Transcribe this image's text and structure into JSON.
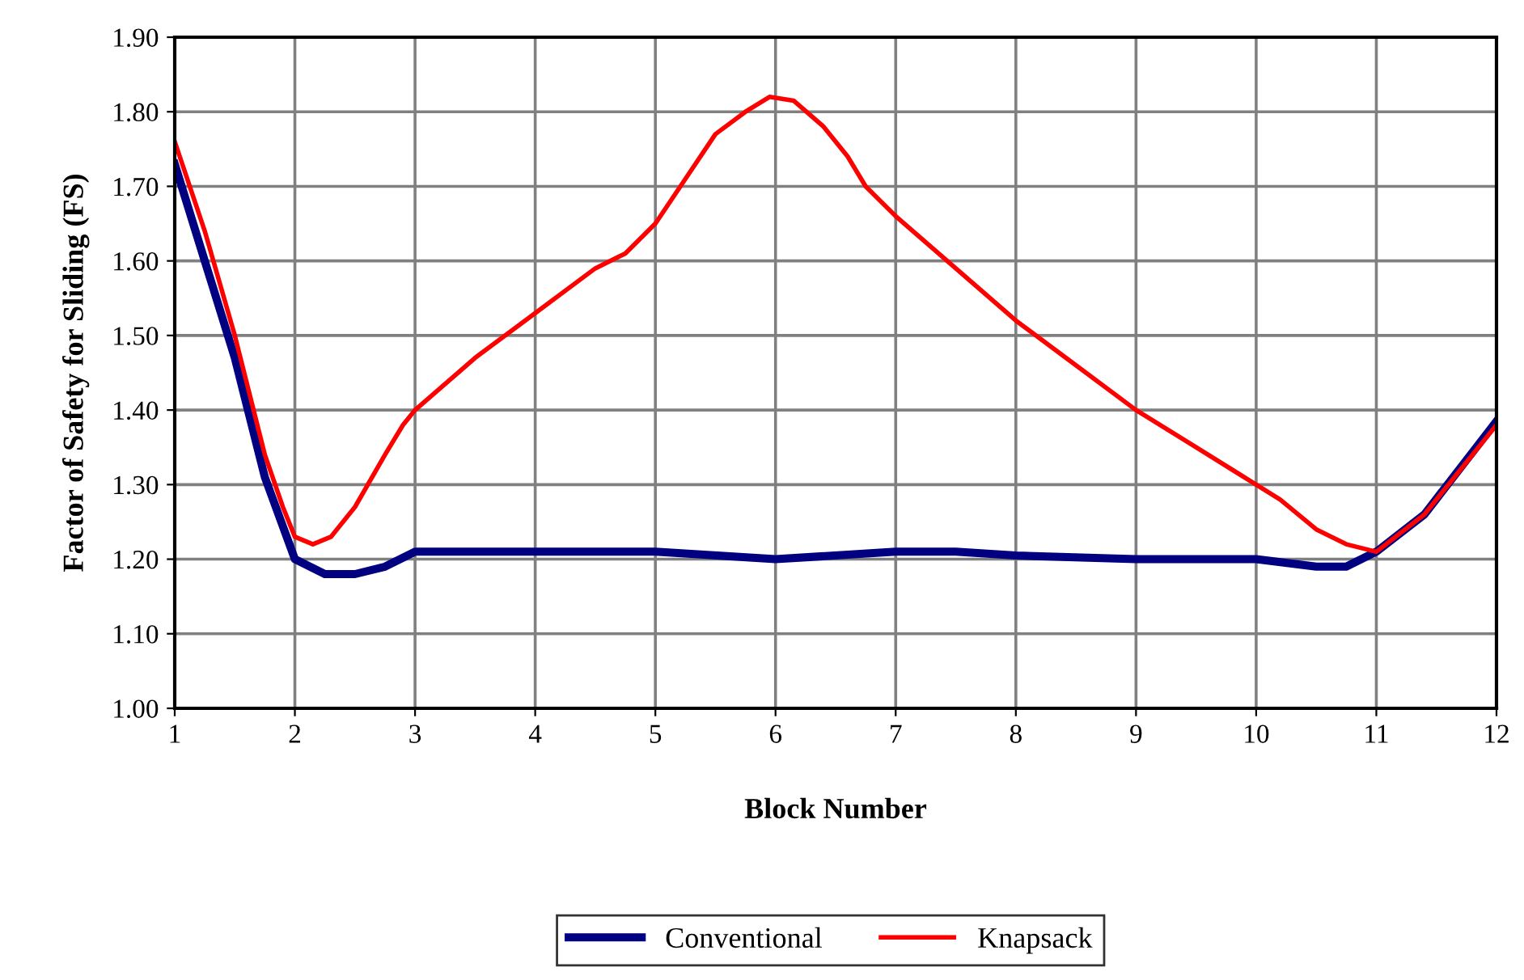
{
  "chart_data": {
    "type": "line",
    "xlabel": "Block Number",
    "ylabel": "Factor of Safety for Sliding (FS)",
    "xlim": [
      1,
      12
    ],
    "xticks": [
      1,
      2,
      3,
      4,
      5,
      6,
      7,
      8,
      9,
      10,
      11,
      12
    ],
    "ylim": [
      1.0,
      1.9
    ],
    "yticks": [
      {
        "value": 1.0,
        "label": "1.00"
      },
      {
        "value": 1.1,
        "label": "1.10"
      },
      {
        "value": 1.2,
        "label": "1.20"
      },
      {
        "value": 1.3,
        "label": "1.30"
      },
      {
        "value": 1.4,
        "label": "1.40"
      },
      {
        "value": 1.5,
        "label": "1.50"
      },
      {
        "value": 1.6,
        "label": "1.60"
      },
      {
        "value": 1.7,
        "label": "1.70"
      },
      {
        "value": 1.8,
        "label": "1.80"
      },
      {
        "value": 1.9,
        "label": "1.90"
      }
    ],
    "grid": true,
    "legend": "bottom",
    "marker": "none",
    "line_style": "solid",
    "series": [
      {
        "name": "Conventional",
        "color": "#000080",
        "x": [
          1,
          1.25,
          1.5,
          1.75,
          2,
          2.25,
          2.5,
          2.75,
          3,
          4,
          5,
          6,
          7,
          7.5,
          8,
          9,
          10,
          10.5,
          10.75,
          11,
          11.4,
          12
        ],
        "values": [
          1.73,
          1.6,
          1.47,
          1.31,
          1.2,
          1.18,
          1.18,
          1.19,
          1.21,
          1.21,
          1.21,
          1.2,
          1.21,
          1.21,
          1.205,
          1.2,
          1.2,
          1.19,
          1.19,
          1.21,
          1.26,
          1.385
        ]
      },
      {
        "name": "Knapsack",
        "color": "#ff0000",
        "x": [
          1,
          1.25,
          1.5,
          1.75,
          1.9,
          2,
          2.15,
          2.3,
          2.5,
          2.75,
          2.9,
          3,
          3.5,
          4,
          4.5,
          4.75,
          5,
          5.25,
          5.5,
          5.75,
          5.95,
          6.15,
          6.4,
          6.6,
          6.75,
          7,
          7.5,
          8,
          8.5,
          9,
          9.5,
          10,
          10.2,
          10.5,
          10.75,
          11,
          11.4,
          12
        ],
        "values": [
          1.76,
          1.64,
          1.5,
          1.34,
          1.27,
          1.23,
          1.22,
          1.23,
          1.27,
          1.34,
          1.38,
          1.4,
          1.47,
          1.53,
          1.59,
          1.61,
          1.65,
          1.71,
          1.77,
          1.8,
          1.82,
          1.815,
          1.78,
          1.74,
          1.7,
          1.66,
          1.59,
          1.52,
          1.46,
          1.4,
          1.35,
          1.3,
          1.28,
          1.24,
          1.22,
          1.21,
          1.26,
          1.38
        ]
      }
    ]
  }
}
